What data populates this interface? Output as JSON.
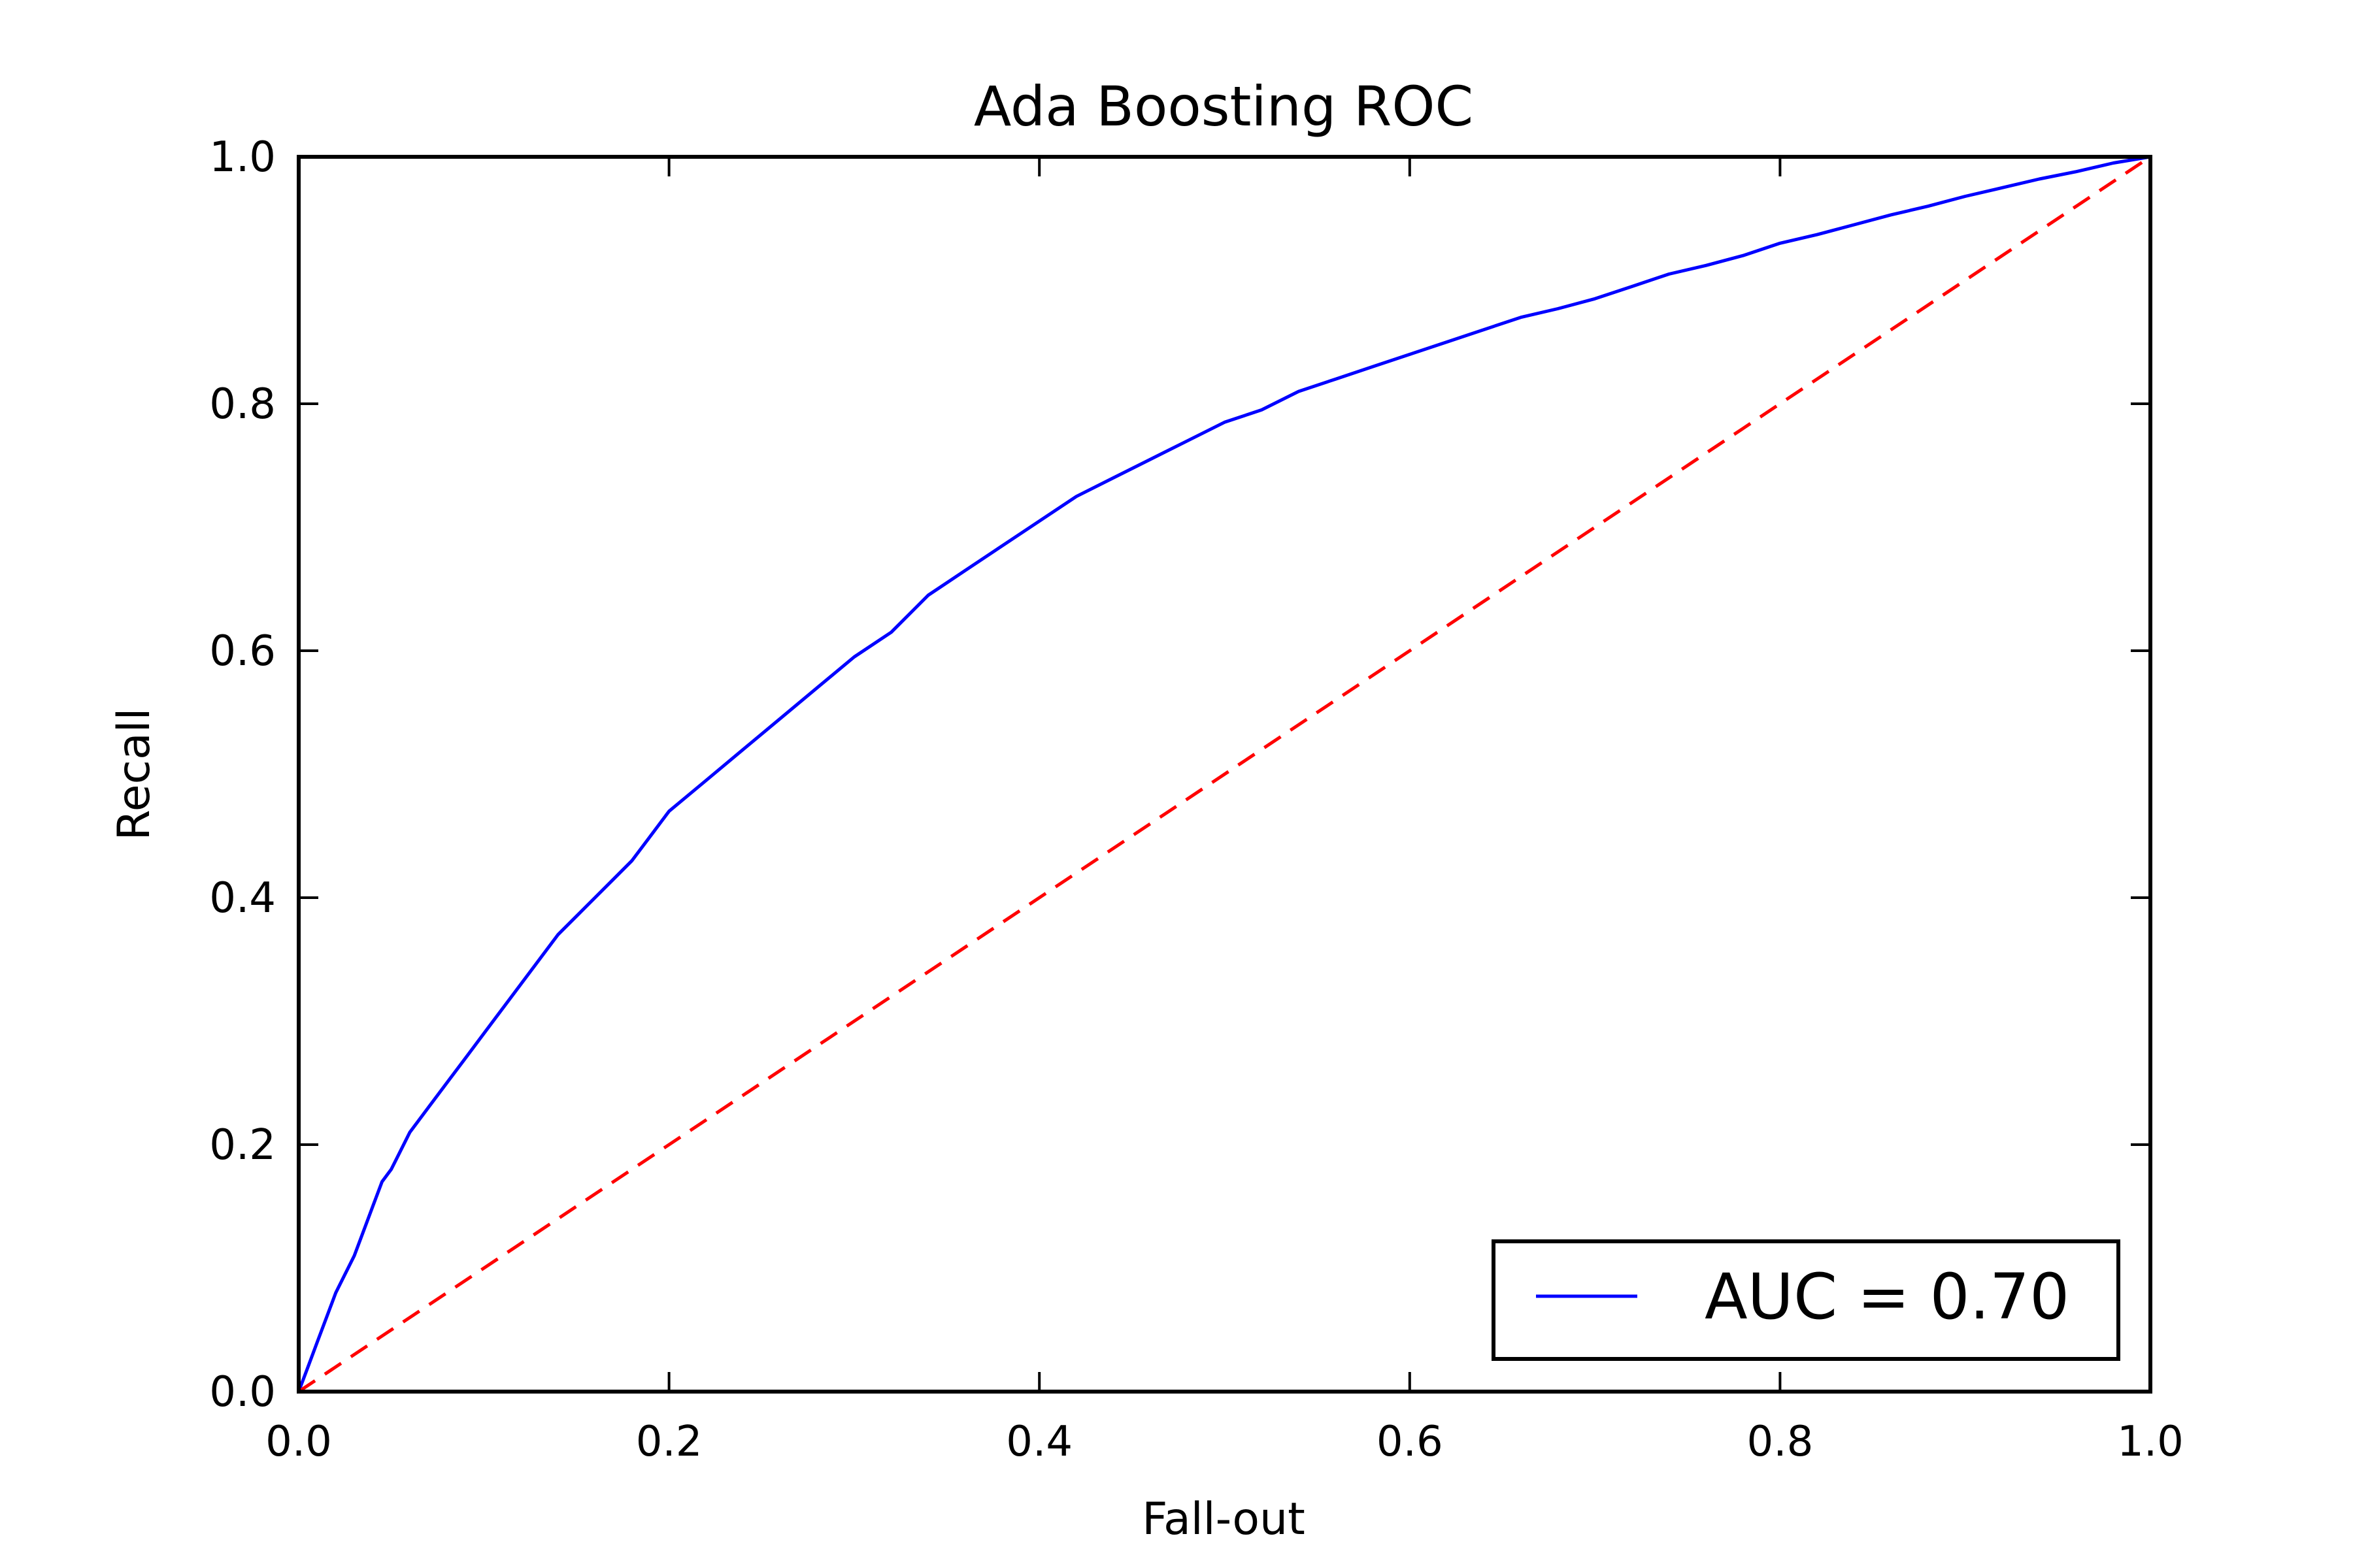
{
  "chart_data": {
    "type": "line",
    "title": "Ada Boosting ROC",
    "xlabel": "Fall-out",
    "ylabel": "Recall",
    "xlim": [
      0.0,
      1.0
    ],
    "ylim": [
      0.0,
      1.0
    ],
    "xticks": [
      "0.0",
      "0.2",
      "0.4",
      "0.6",
      "0.8",
      "1.0"
    ],
    "yticks": [
      "0.0",
      "0.2",
      "0.4",
      "0.6",
      "0.8",
      "1.0"
    ],
    "grid": false,
    "legend_position": "lower-right",
    "series": [
      {
        "name": "AUC = 0.70",
        "color": "#0000ff",
        "style": "solid",
        "x": [
          0.0,
          0.005,
          0.01,
          0.015,
          0.02,
          0.025,
          0.03,
          0.035,
          0.04,
          0.045,
          0.05,
          0.055,
          0.06,
          0.07,
          0.08,
          0.09,
          0.1,
          0.11,
          0.12,
          0.13,
          0.14,
          0.15,
          0.16,
          0.17,
          0.18,
          0.19,
          0.2,
          0.22,
          0.24,
          0.26,
          0.28,
          0.3,
          0.32,
          0.34,
          0.36,
          0.38,
          0.4,
          0.42,
          0.44,
          0.46,
          0.48,
          0.5,
          0.52,
          0.54,
          0.56,
          0.58,
          0.6,
          0.62,
          0.64,
          0.66,
          0.68,
          0.7,
          0.72,
          0.74,
          0.76,
          0.78,
          0.8,
          0.82,
          0.84,
          0.86,
          0.88,
          0.9,
          0.92,
          0.94,
          0.96,
          0.98,
          1.0
        ],
        "y": [
          0.0,
          0.02,
          0.04,
          0.06,
          0.08,
          0.095,
          0.11,
          0.13,
          0.15,
          0.17,
          0.18,
          0.195,
          0.21,
          0.23,
          0.25,
          0.27,
          0.29,
          0.31,
          0.33,
          0.35,
          0.37,
          0.385,
          0.4,
          0.415,
          0.43,
          0.45,
          0.47,
          0.495,
          0.52,
          0.545,
          0.57,
          0.595,
          0.615,
          0.645,
          0.665,
          0.685,
          0.705,
          0.725,
          0.74,
          0.755,
          0.77,
          0.785,
          0.795,
          0.81,
          0.82,
          0.83,
          0.84,
          0.85,
          0.86,
          0.87,
          0.877,
          0.885,
          0.895,
          0.905,
          0.912,
          0.92,
          0.93,
          0.937,
          0.945,
          0.953,
          0.96,
          0.968,
          0.975,
          0.982,
          0.988,
          0.995,
          1.0
        ]
      },
      {
        "name": "",
        "color": "#ff0000",
        "style": "dashed",
        "x": [
          0.0,
          1.0
        ],
        "y": [
          0.0,
          1.0
        ]
      }
    ],
    "legend": [
      {
        "label": "AUC = 0.70",
        "color": "#0000ff"
      }
    ]
  }
}
